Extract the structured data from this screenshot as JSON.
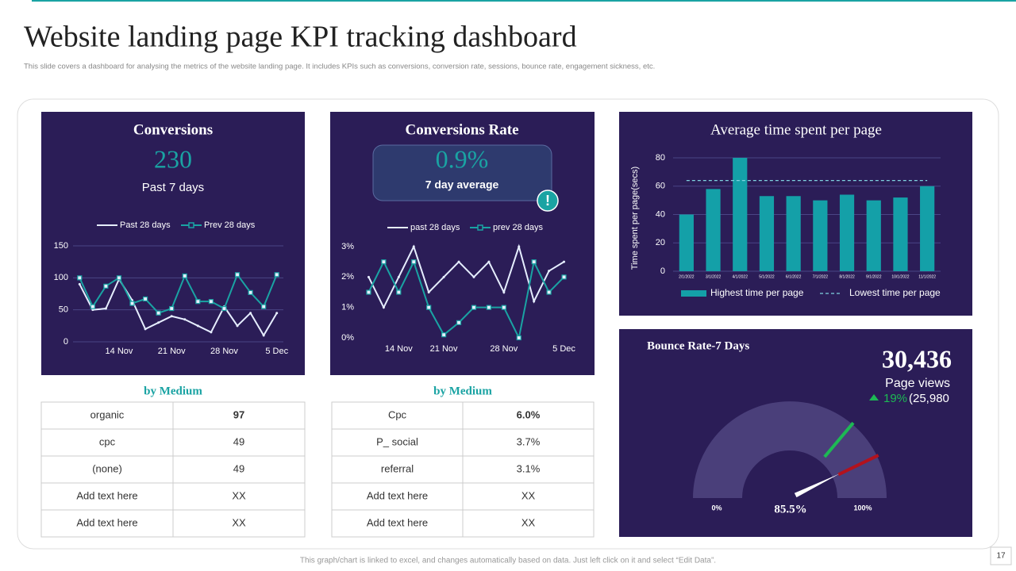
{
  "title": "Website landing page KPI tracking dashboard",
  "subtitle": "This slide covers a dashboard for analysing the metrics of the website landing page. It includes KPIs  such as conversions, conversion rate, sessions, bounce rate, engagement sickness, etc.",
  "footer": "This graph/chart is linked to excel, and changes automatically based on data. Just left click on it and select “Edit Data”.",
  "page_number": "17",
  "conversions": {
    "title": "Conversions",
    "value": "230",
    "caption": "Past 7 days"
  },
  "conversion_rate": {
    "title": "Conversions Rate",
    "value": "0.9%",
    "caption": "7 day average",
    "alert": "!"
  },
  "tables": [
    {
      "title": "by Medium",
      "rows": [
        [
          "organic",
          "97"
        ],
        [
          "cpc",
          "49"
        ],
        [
          "(none)",
          "49"
        ],
        [
          "Add text here",
          "XX"
        ],
        [
          "Add text here",
          "XX"
        ]
      ]
    },
    {
      "title": "by Medium",
      "rows": [
        [
          "Cpc",
          "6.0%"
        ],
        [
          "P_ social",
          "3.7%"
        ],
        [
          "referral",
          "3.1%"
        ],
        [
          "Add text here",
          "XX"
        ],
        [
          "Add text here",
          "XX"
        ]
      ]
    }
  ],
  "chart_data": [
    {
      "type": "line",
      "grid": true,
      "categories": [
        null,
        null,
        null,
        "14 Nov",
        null,
        null,
        null,
        "21 Nov",
        null,
        null,
        null,
        "28 Nov",
        null,
        null,
        null,
        "5 Dec"
      ],
      "series": [
        {
          "name": "Past 28 days",
          "color": "#e6eeff",
          "values": [
            90,
            50,
            52,
            98,
            65,
            20,
            30,
            40,
            35,
            25,
            15,
            55,
            25,
            45,
            10,
            45
          ]
        },
        {
          "name": "Prev 28 days",
          "color": "#1aa3a3",
          "values": [
            100,
            55,
            87,
            100,
            60,
            67,
            45,
            52,
            103,
            63,
            63,
            52,
            105,
            77,
            55,
            105
          ]
        }
      ],
      "ylim": [
        0,
        150
      ],
      "yticks": [
        0,
        50,
        100,
        150
      ]
    },
    {
      "type": "line",
      "grid": false,
      "categories": [
        null,
        null,
        "14 Nov",
        null,
        null,
        "21 Nov",
        null,
        null,
        null,
        "28 Nov",
        null,
        null,
        null,
        "5 Dec"
      ],
      "series": [
        {
          "name": "past 28 days",
          "color": "#e6eeff",
          "values": [
            2.0,
            1.0,
            2.0,
            3.0,
            1.5,
            2.0,
            2.5,
            2.0,
            2.5,
            1.5,
            3.0,
            1.2,
            2.2,
            2.5
          ]
        },
        {
          "name": "prev 28 days",
          "color": "#1aa3a3",
          "values": [
            1.5,
            2.5,
            1.5,
            2.5,
            1.0,
            0.1,
            0.5,
            1.0,
            1.0,
            1.0,
            0.0,
            2.5,
            1.5,
            2.0
          ]
        }
      ],
      "ylim": [
        0,
        3
      ],
      "yticks": [
        {
          "value": 0,
          "label": "0%"
        },
        {
          "value": 1,
          "label": "1%"
        },
        {
          "value": 2,
          "label": "2%"
        },
        {
          "value": 3,
          "label": "3%"
        }
      ]
    },
    {
      "type": "bar",
      "title": "Average time spent per page",
      "y_label": "Time spent per page(secs)",
      "grid": true,
      "categories": [
        "2/1/2022",
        "3/1/2022",
        "4/1/2022",
        "5/1/2022",
        "6/1/2022",
        "7/1/2022",
        "8/1/2022",
        "9/1/2022",
        "10/1/2022",
        "11/1/2022"
      ],
      "series": [
        {
          "name": "Highest time per page",
          "color": "#14a0a8",
          "values": [
            40,
            58,
            80,
            53,
            53,
            50,
            54,
            50,
            52,
            60
          ]
        },
        {
          "name": "Lowest time per page",
          "color": "#7fd3e0",
          "style": "dashed",
          "values": [
            64,
            64,
            64,
            64,
            64,
            64,
            64,
            64,
            64,
            64
          ]
        }
      ],
      "ylim": [
        0,
        80
      ],
      "yticks": [
        0,
        20,
        40,
        60,
        80
      ]
    },
    {
      "type": "gauge",
      "title": "Bounce Rate-7 Days",
      "value": 85.5,
      "value_label": "85.5%",
      "color": "#4a3f7a",
      "ylim": [
        0,
        100
      ],
      "yticks": [
        {
          "value": 0,
          "label": "0%"
        },
        {
          "value": 100,
          "label": "100%"
        }
      ],
      "page_views": "30,436",
      "page_views_label": "Page views",
      "change": "19%",
      "previous": "(25,980"
    }
  ]
}
